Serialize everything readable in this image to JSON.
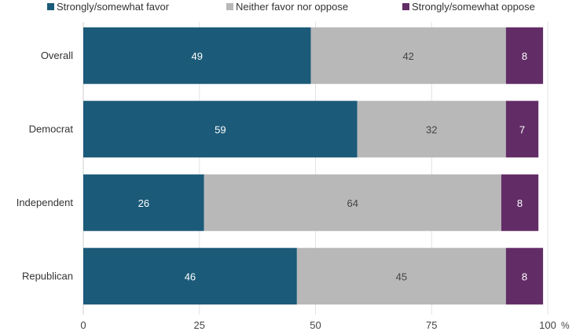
{
  "chart_data": {
    "type": "bar",
    "orientation": "horizontal",
    "stacked": true,
    "categories": [
      "Overall",
      "Democrat",
      "Independent",
      "Republican"
    ],
    "series": [
      {
        "name": "Strongly/somewhat favor",
        "values": [
          49,
          59,
          26,
          46
        ],
        "color": "#1b5a78"
      },
      {
        "name": "Neither favor nor oppose",
        "values": [
          42,
          32,
          64,
          45
        ],
        "color": "#b8b8b8"
      },
      {
        "name": "Strongly/somewhat oppose",
        "values": [
          8,
          7,
          8,
          8
        ],
        "color": "#622d66"
      }
    ],
    "xlim": [
      0,
      100
    ],
    "xticks": [
      0,
      25,
      50,
      75,
      100
    ],
    "x_unit": "%",
    "grid": true,
    "legend_position": "top"
  }
}
